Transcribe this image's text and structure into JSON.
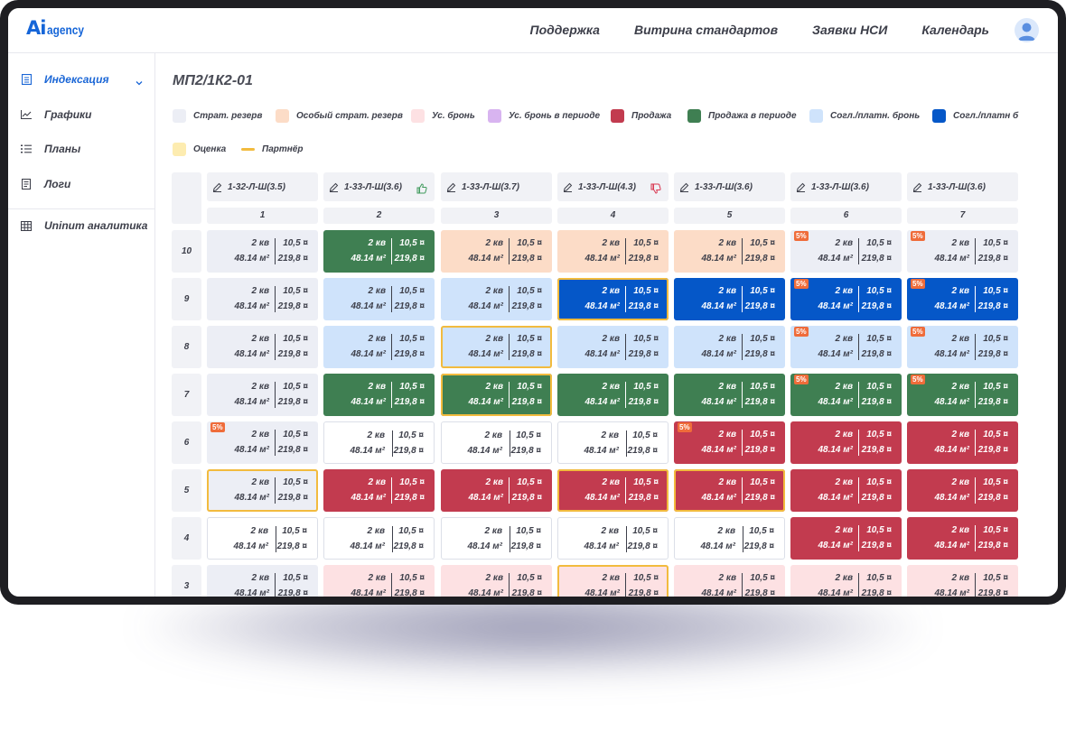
{
  "brand": {
    "mark": "Ai",
    "text": "agency",
    "color": "#1565d8"
  },
  "nav": [
    "Поддержка",
    "Витрина стандартов",
    "Заявки НСИ",
    "Календарь"
  ],
  "sidebar": {
    "items": [
      {
        "label": "Индексация",
        "icon": "list-icon",
        "active": true,
        "expandable": true
      },
      {
        "label": "Графики",
        "icon": "chart-icon",
        "active": false
      },
      {
        "label": "Планы",
        "icon": "bullet-list-icon",
        "active": false
      },
      {
        "label": "Логи",
        "icon": "document-icon",
        "active": false
      },
      {
        "label": "Uninum аналитика",
        "icon": "table-icon",
        "active": false
      }
    ]
  },
  "page_title": "МП2/1К2-01",
  "legend": [
    {
      "label": "Страт. резерв",
      "color": "#eceef5"
    },
    {
      "label": "Особый страт. резерв",
      "color": "#fcdcc7"
    },
    {
      "label": "Ус. бронь",
      "color": "#fde1e3"
    },
    {
      "label": "Ус. бронь в периоде",
      "color": "#d8b4f0"
    },
    {
      "label": "Продажа",
      "color": "#c23b4f"
    },
    {
      "label": "Продажа в периоде",
      "color": "#3f7f52"
    },
    {
      "label": "Согл./платн. бронь",
      "color": "#cfe3fb"
    },
    {
      "label": "Согл./платн б",
      "color": "#0557c8"
    },
    {
      "label": "Оценка",
      "color": "#fdecb0"
    },
    {
      "label": "Партнёр",
      "color": "#f2bb3e"
    }
  ],
  "columns": [
    {
      "name": "1-32-Л-Ш(3.5)",
      "num": "1",
      "thumb": ""
    },
    {
      "name": "1-33-Л-Ш(3.6)",
      "num": "2",
      "thumb": "up"
    },
    {
      "name": "1-33-Л-Ш(3.7)",
      "num": "3",
      "thumb": ""
    },
    {
      "name": "1-33-Л-Ш(4.3)",
      "num": "4",
      "thumb": "down"
    },
    {
      "name": "1-33-Л-Ш(3.6)",
      "num": "5",
      "thumb": ""
    },
    {
      "name": "1-33-Л-Ш(3.6)",
      "num": "6",
      "thumb": ""
    },
    {
      "name": "1-33-Л-Ш(3.6)",
      "num": "7",
      "thumb": ""
    }
  ],
  "unit": {
    "rooms": "2 кв",
    "area": "48.14 м²",
    "value": "10,5 ¤",
    "price": "219,8 ¤"
  },
  "badge_text": "5%",
  "rows": [
    {
      "floor": "10",
      "cells": [
        {
          "status": "strat",
          "badge": false,
          "partner": false
        },
        {
          "status": "green",
          "badge": false,
          "partner": false
        },
        {
          "status": "special",
          "badge": false,
          "partner": false
        },
        {
          "status": "special",
          "badge": false,
          "partner": false
        },
        {
          "status": "special",
          "badge": false,
          "partner": false
        },
        {
          "status": "strat",
          "badge": true,
          "partner": false
        },
        {
          "status": "strat",
          "badge": true,
          "partner": false
        }
      ]
    },
    {
      "floor": "9",
      "cells": [
        {
          "status": "strat",
          "badge": false,
          "partner": false
        },
        {
          "status": "light",
          "badge": false,
          "partner": false
        },
        {
          "status": "light",
          "badge": false,
          "partner": false
        },
        {
          "status": "blue",
          "badge": false,
          "partner": true
        },
        {
          "status": "blue",
          "badge": false,
          "partner": false
        },
        {
          "status": "blue",
          "badge": true,
          "partner": false
        },
        {
          "status": "blue",
          "badge": true,
          "partner": false
        }
      ]
    },
    {
      "floor": "8",
      "cells": [
        {
          "status": "strat",
          "badge": false,
          "partner": false
        },
        {
          "status": "light",
          "badge": false,
          "partner": false
        },
        {
          "status": "light",
          "badge": false,
          "partner": true
        },
        {
          "status": "light",
          "badge": false,
          "partner": false
        },
        {
          "status": "light",
          "badge": false,
          "partner": false
        },
        {
          "status": "light",
          "badge": true,
          "partner": false
        },
        {
          "status": "light",
          "badge": true,
          "partner": false
        }
      ]
    },
    {
      "floor": "7",
      "cells": [
        {
          "status": "strat",
          "badge": false,
          "partner": false
        },
        {
          "status": "green",
          "badge": false,
          "partner": false
        },
        {
          "status": "green",
          "badge": false,
          "partner": true
        },
        {
          "status": "green",
          "badge": false,
          "partner": false
        },
        {
          "status": "green",
          "badge": false,
          "partner": false
        },
        {
          "status": "green",
          "badge": true,
          "partner": false
        },
        {
          "status": "green",
          "badge": true,
          "partner": false
        }
      ]
    },
    {
      "floor": "6",
      "cells": [
        {
          "status": "strat",
          "badge": true,
          "partner": false
        },
        {
          "status": "free",
          "badge": false,
          "partner": false
        },
        {
          "status": "free",
          "badge": false,
          "partner": false
        },
        {
          "status": "free",
          "badge": false,
          "partner": false
        },
        {
          "status": "sold",
          "badge": true,
          "partner": false
        },
        {
          "status": "sold",
          "badge": false,
          "partner": false
        },
        {
          "status": "sold",
          "badge": false,
          "partner": false
        }
      ]
    },
    {
      "floor": "5",
      "cells": [
        {
          "status": "strat",
          "badge": false,
          "partner": true
        },
        {
          "status": "sold",
          "badge": false,
          "partner": false
        },
        {
          "status": "sold",
          "badge": false,
          "partner": false
        },
        {
          "status": "sold",
          "badge": false,
          "partner": true
        },
        {
          "status": "sold",
          "badge": false,
          "partner": true
        },
        {
          "status": "sold",
          "badge": false,
          "partner": false
        },
        {
          "status": "sold",
          "badge": false,
          "partner": false
        }
      ]
    },
    {
      "floor": "4",
      "cells": [
        {
          "status": "free",
          "badge": false,
          "partner": false
        },
        {
          "status": "free",
          "badge": false,
          "partner": false
        },
        {
          "status": "free",
          "badge": false,
          "partner": false
        },
        {
          "status": "free",
          "badge": false,
          "partner": false
        },
        {
          "status": "free",
          "badge": false,
          "partner": false
        },
        {
          "status": "sold",
          "badge": false,
          "partner": false
        },
        {
          "status": "sold",
          "badge": false,
          "partner": false
        }
      ]
    },
    {
      "floor": "3",
      "cells": [
        {
          "status": "strat",
          "badge": false,
          "partner": false
        },
        {
          "status": "bron",
          "badge": false,
          "partner": false
        },
        {
          "status": "bron",
          "badge": false,
          "partner": false
        },
        {
          "status": "bron",
          "badge": false,
          "partner": true
        },
        {
          "status": "bron",
          "badge": false,
          "partner": false
        },
        {
          "status": "bron",
          "badge": false,
          "partner": false
        },
        {
          "status": "bron",
          "badge": false,
          "partner": false
        }
      ]
    }
  ]
}
